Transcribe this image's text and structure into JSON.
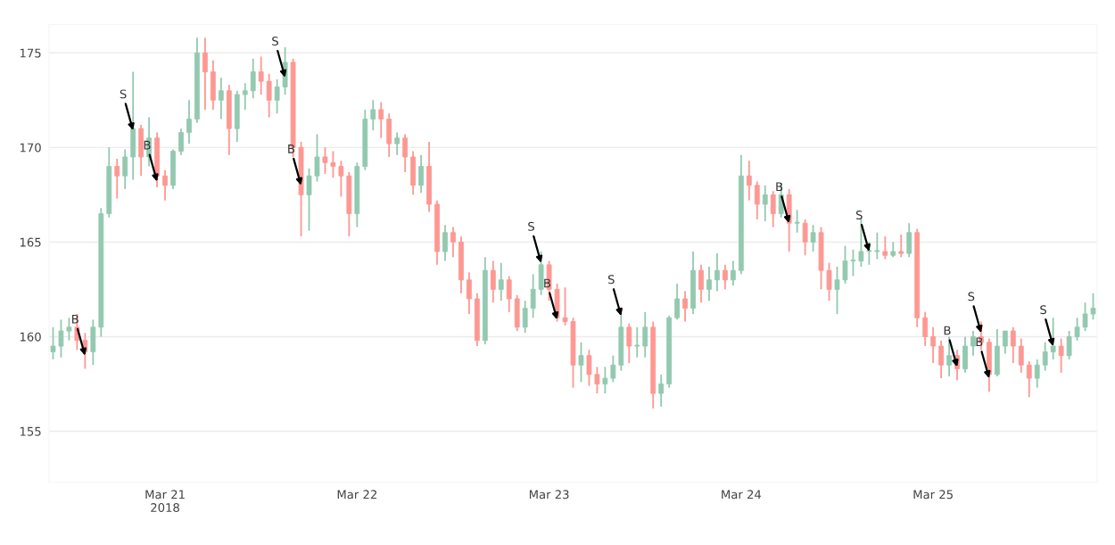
{
  "chart_data": {
    "type": "candlestick",
    "x": [
      "2018-03-20T10:00",
      "2018-03-20T11:00",
      "2018-03-20T12:00",
      "2018-03-20T13:00",
      "2018-03-20T14:00",
      "2018-03-20T15:00",
      "2018-03-20T16:00",
      "2018-03-20T17:00",
      "2018-03-20T18:00",
      "2018-03-20T19:00",
      "2018-03-20T20:00",
      "2018-03-20T21:00",
      "2018-03-20T22:00",
      "2018-03-20T23:00",
      "2018-03-21T00:00",
      "2018-03-21T01:00",
      "2018-03-21T02:00",
      "2018-03-21T03:00",
      "2018-03-21T04:00",
      "2018-03-21T05:00",
      "2018-03-21T06:00",
      "2018-03-21T07:00",
      "2018-03-21T08:00",
      "2018-03-21T09:00",
      "2018-03-21T10:00",
      "2018-03-21T11:00",
      "2018-03-21T12:00",
      "2018-03-21T13:00",
      "2018-03-21T14:00",
      "2018-03-21T15:00",
      "2018-03-21T16:00",
      "2018-03-21T17:00",
      "2018-03-21T18:00",
      "2018-03-21T19:00",
      "2018-03-21T20:00",
      "2018-03-21T21:00",
      "2018-03-21T22:00",
      "2018-03-21T23:00",
      "2018-03-22T00:00",
      "2018-03-22T01:00",
      "2018-03-22T02:00",
      "2018-03-22T03:00",
      "2018-03-22T04:00",
      "2018-03-22T05:00",
      "2018-03-22T06:00",
      "2018-03-22T07:00",
      "2018-03-22T08:00",
      "2018-03-22T09:00",
      "2018-03-22T10:00",
      "2018-03-22T11:00",
      "2018-03-22T12:00",
      "2018-03-22T13:00",
      "2018-03-22T14:00",
      "2018-03-22T15:00",
      "2018-03-22T16:00",
      "2018-03-22T17:00",
      "2018-03-22T18:00",
      "2018-03-22T19:00",
      "2018-03-22T20:00",
      "2018-03-22T21:00",
      "2018-03-22T22:00",
      "2018-03-22T23:00",
      "2018-03-23T00:00",
      "2018-03-23T01:00",
      "2018-03-23T02:00",
      "2018-03-23T03:00",
      "2018-03-23T04:00",
      "2018-03-23T05:00",
      "2018-03-23T06:00",
      "2018-03-23T07:00",
      "2018-03-23T08:00",
      "2018-03-23T09:00",
      "2018-03-23T10:00",
      "2018-03-23T11:00",
      "2018-03-23T12:00",
      "2018-03-23T13:00",
      "2018-03-23T14:00",
      "2018-03-23T15:00",
      "2018-03-23T16:00",
      "2018-03-23T17:00",
      "2018-03-23T18:00",
      "2018-03-23T19:00",
      "2018-03-23T20:00",
      "2018-03-23T21:00",
      "2018-03-23T22:00",
      "2018-03-23T23:00",
      "2018-03-24T00:00",
      "2018-03-24T01:00",
      "2018-03-24T02:00",
      "2018-03-24T03:00",
      "2018-03-24T04:00",
      "2018-03-24T05:00",
      "2018-03-24T06:00",
      "2018-03-24T07:00",
      "2018-03-24T08:00",
      "2018-03-24T09:00",
      "2018-03-24T10:00",
      "2018-03-24T11:00",
      "2018-03-24T12:00",
      "2018-03-24T13:00",
      "2018-03-24T14:00",
      "2018-03-24T15:00",
      "2018-03-24T16:00",
      "2018-03-24T17:00",
      "2018-03-24T18:00",
      "2018-03-24T19:00",
      "2018-03-24T20:00",
      "2018-03-24T21:00",
      "2018-03-24T22:00",
      "2018-03-24T23:00",
      "2018-03-25T00:00",
      "2018-03-25T01:00",
      "2018-03-25T02:00",
      "2018-03-25T03:00",
      "2018-03-25T04:00",
      "2018-03-25T05:00",
      "2018-03-25T06:00",
      "2018-03-25T07:00",
      "2018-03-25T08:00",
      "2018-03-25T09:00",
      "2018-03-25T10:00",
      "2018-03-25T11:00",
      "2018-03-25T12:00",
      "2018-03-25T13:00",
      "2018-03-25T14:00",
      "2018-03-25T15:00",
      "2018-03-25T16:00",
      "2018-03-25T17:00",
      "2018-03-25T18:00",
      "2018-03-25T19:00",
      "2018-03-25T20:00"
    ],
    "ohlc": [
      [
        159.2,
        160.5,
        158.8,
        159.5
      ],
      [
        159.5,
        160.9,
        158.9,
        160.3
      ],
      [
        160.3,
        161.0,
        159.8,
        160.5
      ],
      [
        160.5,
        161.2,
        159.3,
        159.8
      ],
      [
        159.8,
        160.2,
        158.3,
        159.2
      ],
      [
        159.2,
        160.9,
        158.5,
        160.5
      ],
      [
        160.5,
        166.8,
        160.0,
        166.5
      ],
      [
        166.5,
        170.0,
        166.3,
        169.0
      ],
      [
        169.0,
        169.4,
        167.3,
        168.5
      ],
      [
        168.5,
        169.9,
        167.8,
        169.5
      ],
      [
        169.5,
        174.0,
        168.3,
        171.0
      ],
      [
        171.0,
        171.2,
        168.5,
        169.5
      ],
      [
        169.5,
        171.6,
        169.0,
        170.5
      ],
      [
        170.5,
        170.8,
        167.9,
        168.5
      ],
      [
        168.5,
        168.8,
        167.2,
        168.0
      ],
      [
        168.0,
        169.9,
        167.8,
        169.8
      ],
      [
        169.8,
        171.0,
        169.6,
        170.8
      ],
      [
        170.8,
        172.5,
        170.2,
        171.5
      ],
      [
        171.5,
        175.8,
        171.3,
        175.0
      ],
      [
        175.0,
        175.8,
        172.0,
        174.0
      ],
      [
        174.0,
        174.6,
        172.0,
        172.5
      ],
      [
        172.5,
        173.7,
        171.5,
        173.0
      ],
      [
        173.0,
        173.3,
        169.6,
        171.0
      ],
      [
        171.0,
        173.0,
        170.3,
        172.8
      ],
      [
        172.8,
        173.4,
        172.0,
        173.0
      ],
      [
        173.0,
        174.7,
        172.6,
        174.0
      ],
      [
        174.0,
        174.8,
        172.8,
        173.5
      ],
      [
        173.5,
        173.9,
        171.6,
        172.5
      ],
      [
        172.5,
        173.6,
        171.8,
        173.2
      ],
      [
        173.2,
        175.3,
        172.8,
        174.5
      ],
      [
        174.5,
        174.7,
        169.5,
        170.0
      ],
      [
        170.0,
        170.3,
        165.3,
        167.5
      ],
      [
        167.5,
        168.9,
        165.6,
        168.5
      ],
      [
        168.5,
        170.7,
        168.2,
        169.5
      ],
      [
        169.5,
        170.0,
        168.6,
        169.2
      ],
      [
        169.2,
        169.8,
        168.4,
        169.0
      ],
      [
        169.0,
        169.3,
        167.4,
        168.5
      ],
      [
        168.5,
        168.7,
        165.3,
        166.5
      ],
      [
        166.5,
        169.2,
        165.8,
        169.0
      ],
      [
        169.0,
        172.0,
        168.8,
        171.5
      ],
      [
        171.5,
        172.5,
        170.9,
        172.0
      ],
      [
        172.0,
        172.4,
        170.5,
        171.5
      ],
      [
        171.5,
        171.8,
        169.5,
        170.2
      ],
      [
        170.2,
        170.8,
        169.6,
        170.5
      ],
      [
        170.5,
        170.7,
        168.7,
        169.5
      ],
      [
        169.5,
        169.8,
        167.5,
        168.0
      ],
      [
        168.0,
        169.6,
        167.6,
        169.0
      ],
      [
        169.0,
        170.3,
        166.6,
        167.0
      ],
      [
        167.0,
        167.2,
        163.8,
        164.5
      ],
      [
        164.5,
        165.9,
        164.0,
        165.5
      ],
      [
        165.5,
        165.8,
        164.2,
        165.0
      ],
      [
        165.0,
        165.3,
        162.3,
        163.0
      ],
      [
        163.0,
        163.4,
        161.2,
        162.0
      ],
      [
        162.0,
        162.3,
        159.5,
        159.8
      ],
      [
        159.8,
        164.2,
        159.6,
        163.5
      ],
      [
        163.5,
        164.0,
        161.8,
        162.5
      ],
      [
        162.5,
        163.9,
        161.9,
        163.0
      ],
      [
        163.0,
        163.2,
        161.3,
        162.0
      ],
      [
        162.0,
        162.2,
        160.3,
        160.5
      ],
      [
        160.5,
        161.9,
        160.2,
        161.5
      ],
      [
        161.5,
        163.3,
        161.0,
        162.5
      ],
      [
        162.5,
        164.5,
        162.2,
        163.8
      ],
      [
        163.8,
        164.0,
        161.9,
        162.5
      ],
      [
        162.5,
        162.8,
        160.8,
        161.0
      ],
      [
        161.0,
        162.6,
        160.6,
        160.8
      ],
      [
        160.8,
        161.0,
        157.3,
        158.5
      ],
      [
        158.5,
        159.7,
        157.6,
        159.0
      ],
      [
        159.0,
        159.3,
        157.4,
        158.0
      ],
      [
        158.0,
        158.4,
        157.0,
        157.5
      ],
      [
        157.5,
        158.4,
        157.0,
        157.8
      ],
      [
        157.8,
        159.0,
        157.6,
        158.5
      ],
      [
        158.5,
        161.2,
        158.2,
        160.5
      ],
      [
        160.5,
        160.7,
        158.6,
        159.5
      ],
      [
        159.5,
        160.5,
        158.9,
        159.5
      ],
      [
        159.5,
        161.3,
        158.9,
        160.5
      ],
      [
        160.5,
        160.8,
        156.2,
        157.0
      ],
      [
        157.0,
        158.0,
        156.3,
        157.5
      ],
      [
        157.5,
        161.1,
        157.3,
        161.0
      ],
      [
        161.0,
        162.8,
        160.9,
        162.0
      ],
      [
        162.0,
        162.4,
        160.8,
        161.5
      ],
      [
        161.5,
        164.5,
        161.2,
        163.5
      ],
      [
        163.5,
        163.8,
        161.8,
        162.5
      ],
      [
        162.5,
        163.7,
        161.9,
        163.0
      ],
      [
        163.0,
        164.4,
        162.4,
        163.5
      ],
      [
        163.5,
        163.8,
        162.5,
        163.0
      ],
      [
        163.0,
        164.0,
        162.7,
        163.5
      ],
      [
        163.5,
        169.6,
        163.3,
        168.5
      ],
      [
        168.5,
        169.3,
        167.2,
        168.0
      ],
      [
        168.0,
        168.2,
        166.2,
        167.0
      ],
      [
        167.0,
        168.0,
        166.1,
        167.5
      ],
      [
        167.5,
        167.7,
        165.8,
        166.5
      ],
      [
        166.5,
        168.1,
        166.3,
        167.5
      ],
      [
        167.5,
        167.8,
        164.5,
        166.0
      ],
      [
        166.0,
        166.7,
        165.5,
        166.0
      ],
      [
        166.0,
        166.2,
        164.3,
        165.0
      ],
      [
        165.0,
        165.9,
        164.5,
        165.5
      ],
      [
        165.5,
        165.8,
        162.5,
        163.5
      ],
      [
        163.5,
        163.9,
        161.9,
        162.5
      ],
      [
        162.5,
        163.7,
        161.2,
        163.0
      ],
      [
        163.0,
        164.8,
        162.8,
        164.0
      ],
      [
        164.0,
        164.6,
        163.2,
        164.0
      ],
      [
        164.0,
        166.2,
        163.7,
        164.5
      ],
      [
        164.5,
        165.0,
        163.8,
        164.5
      ],
      [
        164.5,
        165.5,
        164.1,
        164.5
      ],
      [
        164.5,
        165.3,
        164.1,
        164.3
      ],
      [
        164.3,
        165.0,
        164.2,
        164.5
      ],
      [
        164.5,
        165.4,
        164.2,
        164.4
      ],
      [
        164.4,
        166.0,
        164.2,
        165.5
      ],
      [
        165.5,
        165.7,
        160.5,
        161.0
      ],
      [
        161.0,
        161.3,
        159.5,
        160.0
      ],
      [
        160.0,
        160.5,
        158.6,
        159.5
      ],
      [
        159.5,
        159.8,
        157.8,
        158.5
      ],
      [
        158.5,
        160.0,
        157.9,
        159.0
      ],
      [
        159.0,
        159.3,
        157.7,
        158.3
      ],
      [
        158.3,
        160.0,
        158.1,
        159.5
      ],
      [
        159.5,
        160.3,
        159.0,
        160.0
      ],
      [
        160.0,
        160.8,
        159.3,
        159.7
      ],
      [
        159.7,
        159.9,
        157.1,
        158.0
      ],
      [
        158.0,
        160.4,
        157.9,
        159.5
      ],
      [
        159.5,
        160.3,
        159.1,
        160.3
      ],
      [
        160.3,
        160.5,
        158.6,
        159.5
      ],
      [
        159.5,
        159.9,
        158.1,
        158.5
      ],
      [
        158.5,
        158.7,
        156.8,
        157.8
      ],
      [
        157.8,
        158.8,
        157.3,
        158.5
      ],
      [
        158.5,
        159.7,
        158.2,
        159.2
      ],
      [
        159.2,
        161.0,
        158.8,
        159.5
      ],
      [
        159.5,
        159.9,
        158.1,
        159.0
      ],
      [
        159.0,
        160.3,
        158.8,
        160.0
      ],
      [
        160.0,
        161.0,
        159.8,
        160.5
      ],
      [
        160.5,
        161.8,
        160.3,
        161.2
      ],
      [
        161.2,
        162.3,
        160.9,
        161.5
      ]
    ],
    "xlim": [
      "2018-03-20T09:30",
      "2018-03-25T20:30"
    ],
    "xticks": [
      {
        "value": "2018-03-21",
        "label": "Mar 21\n2018"
      },
      {
        "value": "2018-03-22",
        "label": "Mar 22"
      },
      {
        "value": "2018-03-23",
        "label": "Mar 23"
      },
      {
        "value": "2018-03-24",
        "label": "Mar 24"
      },
      {
        "value": "2018-03-25",
        "label": "Mar 25"
      }
    ],
    "ylim": [
      152.3,
      176.5
    ],
    "yticks": [
      155,
      160,
      165,
      170,
      175
    ],
    "grid": "y",
    "annotations": [
      {
        "text": "B",
        "x": "2018-03-20T14:00",
        "y": 159.0
      },
      {
        "text": "S",
        "x": "2018-03-20T20:00",
        "y": 170.9
      },
      {
        "text": "B",
        "x": "2018-03-20T23:00",
        "y": 168.2
      },
      {
        "text": "S",
        "x": "2018-03-21T15:00",
        "y": 173.7
      },
      {
        "text": "B",
        "x": "2018-03-21T17:00",
        "y": 168.0
      },
      {
        "text": "S",
        "x": "2018-03-22T23:00",
        "y": 163.9
      },
      {
        "text": "B",
        "x": "2018-03-23T01:00",
        "y": 160.9
      },
      {
        "text": "S",
        "x": "2018-03-23T09:00",
        "y": 161.1
      },
      {
        "text": "B",
        "x": "2018-03-24T06:00",
        "y": 166.0
      },
      {
        "text": "S",
        "x": "2018-03-24T16:00",
        "y": 164.5
      },
      {
        "text": "B",
        "x": "2018-03-25T03:00",
        "y": 158.4
      },
      {
        "text": "S",
        "x": "2018-03-25T06:00",
        "y": 160.2
      },
      {
        "text": "B",
        "x": "2018-03-25T07:00",
        "y": 157.8
      },
      {
        "text": "S",
        "x": "2018-03-25T15:00",
        "y": 159.5
      }
    ]
  }
}
